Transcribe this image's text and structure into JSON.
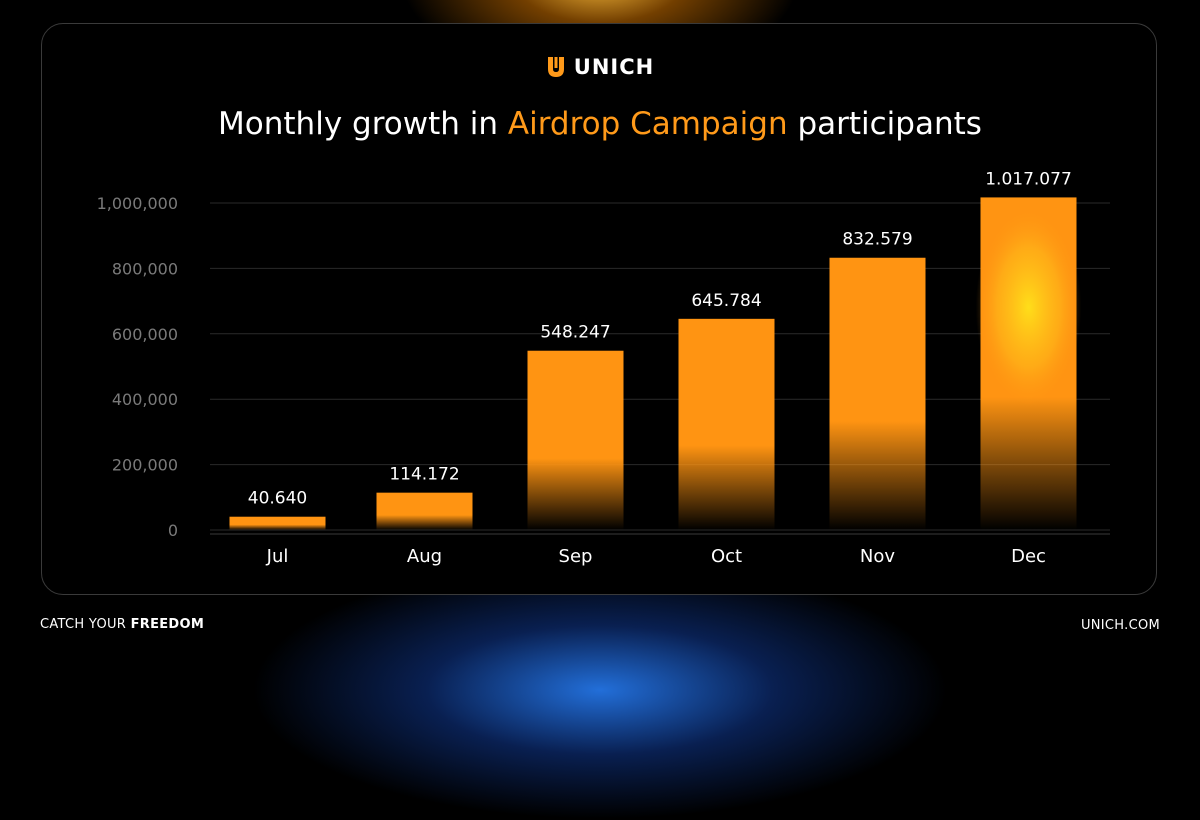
{
  "brand": {
    "logo_text": "UNICH",
    "logo_icon": "unich-shield-icon",
    "accent_color": "#ff9a1a",
    "tagline_prefix": "CATCH YOUR",
    "tagline_bold": "FREEDOM",
    "website": "UNICH.COM"
  },
  "title": {
    "prefix": "Monthly growth in",
    "highlight": "Airdrop Campaign",
    "suffix": "participants"
  },
  "chart_data": {
    "type": "bar",
    "categories": [
      "Jul",
      "Aug",
      "Sep",
      "Oct",
      "Nov",
      "Dec"
    ],
    "values": [
      40640,
      114172,
      548247,
      645784,
      832579,
      1017077
    ],
    "data_labels": [
      "40.640",
      "114.172",
      "548.247",
      "645.784",
      "832.579",
      "1.017.077"
    ],
    "yticks": [
      0,
      200000,
      400000,
      600000,
      800000,
      1000000
    ],
    "ytick_labels": [
      "0",
      "200,000",
      "400,000",
      "600,000",
      "800,000",
      "1,000,000"
    ],
    "ylim": [
      0,
      1000000
    ],
    "grid": true,
    "bar_color": "#ff9412",
    "highlight_color": "#ffd21a"
  }
}
